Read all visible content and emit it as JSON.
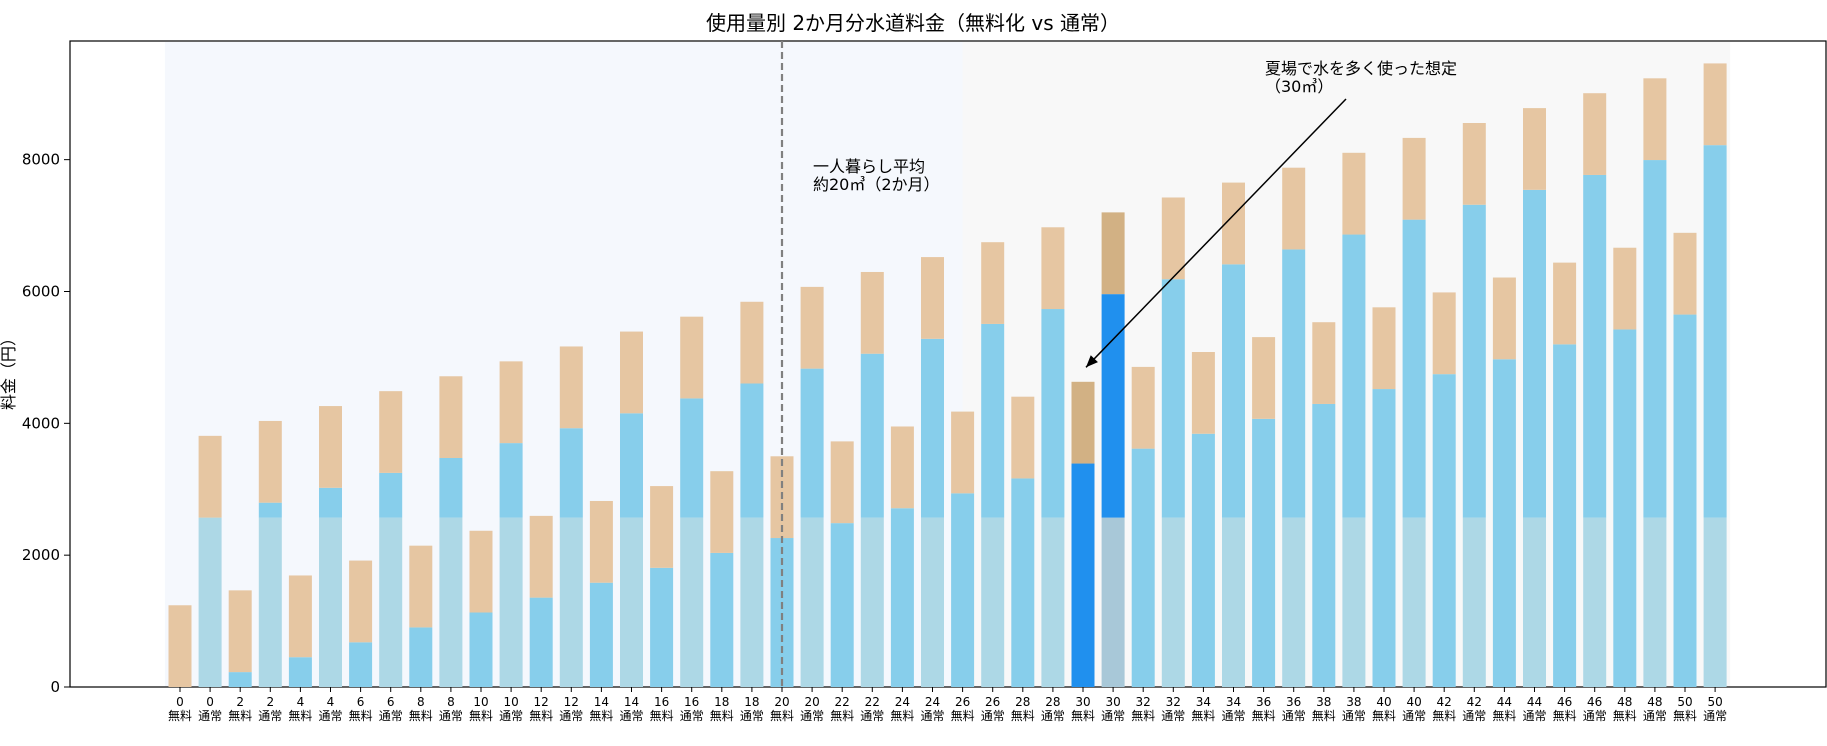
{
  "chart_data": {
    "type": "bar",
    "stacked": true,
    "title": "使用量別 2か月分水道料金（無料化 vs 通常）",
    "xlabel": "",
    "ylabel": "料金（円）",
    "ylim": [
      0,
      9800
    ],
    "yticks": [
      0,
      2000,
      4000,
      6000,
      8000
    ],
    "grid": false,
    "legend": "none",
    "categories": [
      "0\n無料",
      "0\n通常",
      "2\n無料",
      "2\n通常",
      "4\n無料",
      "4\n通常",
      "6\n無料",
      "6\n通常",
      "8\n無料",
      "8\n通常",
      "10\n無料",
      "10\n通常",
      "12\n無料",
      "12\n通常",
      "14\n無料",
      "14\n通常",
      "16\n無料",
      "16\n通常",
      "18\n無料",
      "18\n通常",
      "20\n無料",
      "20\n通常",
      "22\n無料",
      "22\n通常",
      "24\n無料",
      "24\n通常",
      "26\n無料",
      "26\n通常",
      "28\n無料",
      "28\n通常",
      "30\n無料",
      "30\n通常",
      "32\n無料",
      "32\n通常",
      "34\n無料",
      "34\n通常",
      "36\n無料",
      "36\n通常",
      "38\n無料",
      "38\n通常",
      "40\n無料",
      "40\n通常",
      "42\n無料",
      "42\n通常",
      "44\n無料",
      "44\n通常",
      "46\n無料",
      "46\n通常",
      "48\n無料",
      "48\n通常",
      "50\n無料",
      "50\n通常"
    ],
    "series": [
      {
        "values": [
          0,
          2570,
          0,
          2570,
          0,
          2570,
          0,
          2570,
          0,
          2570,
          0,
          2570,
          0,
          2570,
          0,
          2570,
          0,
          2570,
          0,
          2570,
          0,
          2570,
          0,
          2570,
          0,
          2570,
          0,
          2570,
          0,
          2570,
          0,
          2570,
          0,
          2570,
          0,
          2570,
          0,
          2570,
          0,
          2570,
          0,
          2570,
          0,
          2570,
          0,
          2570,
          0,
          2570,
          0,
          2570,
          0,
          2570
        ],
        "color": "#add8e6"
      },
      {
        "values": [
          0,
          0,
          226,
          226,
          452,
          452,
          678,
          678,
          904,
          904,
          1130,
          1130,
          1356,
          1356,
          1582,
          1582,
          1808,
          1808,
          2034,
          2034,
          2260,
          2260,
          2486,
          2486,
          2712,
          2712,
          2938,
          2938,
          3164,
          3164,
          3390,
          3390,
          3616,
          3616,
          3842,
          3842,
          4068,
          4068,
          4294,
          4294,
          4520,
          4520,
          4746,
          4746,
          4972,
          4972,
          5198,
          5198,
          5424,
          5424,
          5650,
          5650
        ],
        "color": "#87ceeb"
      },
      {
        "values": [
          1240,
          1240,
          1240,
          1240,
          1240,
          1240,
          1240,
          1240,
          1240,
          1240,
          1240,
          1240,
          1240,
          1240,
          1240,
          1240,
          1240,
          1240,
          1240,
          1240,
          1240,
          1240,
          1240,
          1240,
          1240,
          1240,
          1240,
          1240,
          1240,
          1240,
          1240,
          1240,
          1240,
          1240,
          1240,
          1240,
          1240,
          1240,
          1240,
          1240,
          1240,
          1240,
          1240,
          1240,
          1240,
          1240,
          1240,
          1240,
          1240,
          1240,
          1240,
          1240
        ],
        "color": "#e6c6a2"
      }
    ],
    "highlight_index": [
      30,
      31
    ],
    "highlight_colors": {
      "base": "#a8c8d8",
      "usage": "#2090ee",
      "sewer": "#d2b184"
    },
    "bands": [
      {
        "from_index": 0,
        "to_index": 26.5,
        "color": "#f5f8fd"
      },
      {
        "from_index": 26.5,
        "to_index": 51.5,
        "color": "#f8f8f8"
      }
    ],
    "reference_line_index": 20,
    "annotations": [
      {
        "lines": [
          "一人暮らし平均",
          "約20㎥（2か月）"
        ]
      },
      {
        "lines": [
          "夏場で水を多く使った想定",
          "（30㎥）"
        ],
        "arrow_to_index": 30,
        "arrow_to_value": 4850
      }
    ]
  }
}
